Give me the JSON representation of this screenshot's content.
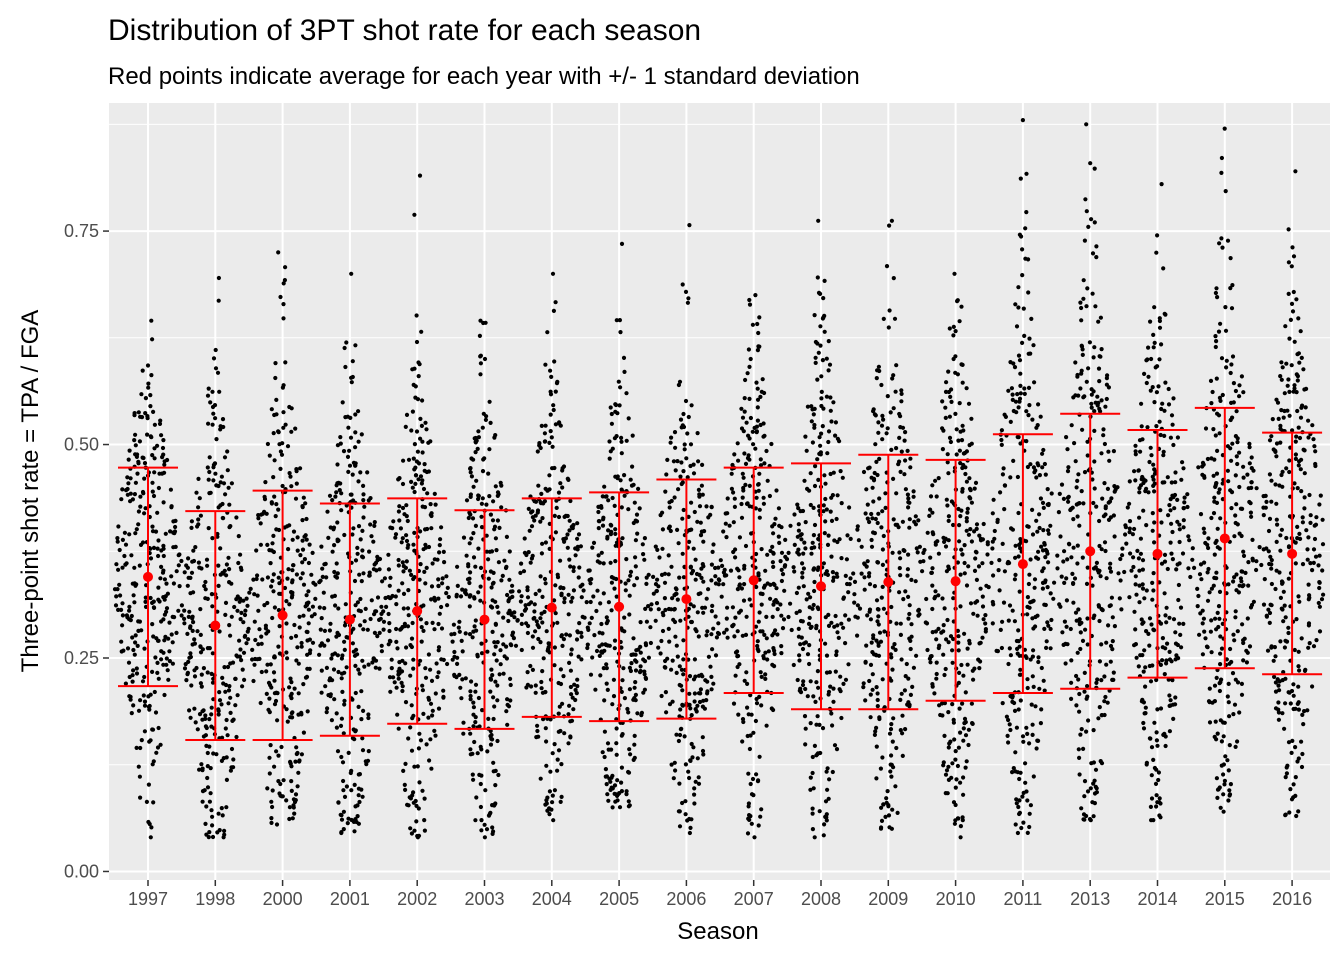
{
  "chart_data": {
    "type": "scatter",
    "subtype": "beeswarm-with-errorbars",
    "title": "Distribution of 3PT shot rate for each season",
    "subtitle": "Red points indicate average for each year with +/- 1 standard deviation",
    "xlabel": "Season",
    "ylabel": "Three-point shot rate = TPA / FGA",
    "ylim": [
      -0.01,
      0.9
    ],
    "yticks": [
      "0.00",
      "0.25",
      "0.50",
      "0.75"
    ],
    "grid": true,
    "legend": "none",
    "colors": {
      "points": "#000000",
      "summary": "#ff0000",
      "panel": "#ebebeb",
      "grid": "#ffffff"
    },
    "categories": [
      "1997",
      "1998",
      "2000",
      "2001",
      "2002",
      "2003",
      "2004",
      "2005",
      "2006",
      "2007",
      "2008",
      "2009",
      "2010",
      "2011",
      "2013",
      "2014",
      "2015",
      "2016"
    ],
    "series": [
      {
        "mean": 0.345,
        "lower": 0.217,
        "upper": 0.473,
        "min": 0.04,
        "max": 0.645
      },
      {
        "mean": 0.288,
        "lower": 0.154,
        "upper": 0.422,
        "min": 0.04,
        "max": 0.695
      },
      {
        "mean": 0.3,
        "lower": 0.154,
        "upper": 0.446,
        "min": 0.055,
        "max": 0.725
      },
      {
        "mean": 0.295,
        "lower": 0.159,
        "upper": 0.431,
        "min": 0.045,
        "max": 0.7
      },
      {
        "mean": 0.305,
        "lower": 0.173,
        "upper": 0.437,
        "min": 0.04,
        "max": 0.815
      },
      {
        "mean": 0.295,
        "lower": 0.167,
        "upper": 0.423,
        "min": 0.04,
        "max": 0.645
      },
      {
        "mean": 0.309,
        "lower": 0.181,
        "upper": 0.437,
        "min": 0.06,
        "max": 0.7
      },
      {
        "mean": 0.31,
        "lower": 0.176,
        "upper": 0.444,
        "min": 0.075,
        "max": 0.735
      },
      {
        "mean": 0.319,
        "lower": 0.179,
        "upper": 0.459,
        "min": 0.045,
        "max": 0.757
      },
      {
        "mean": 0.341,
        "lower": 0.209,
        "upper": 0.473,
        "min": 0.04,
        "max": 0.675
      },
      {
        "mean": 0.334,
        "lower": 0.19,
        "upper": 0.478,
        "min": 0.04,
        "max": 0.762
      },
      {
        "mean": 0.339,
        "lower": 0.19,
        "upper": 0.488,
        "min": 0.05,
        "max": 0.762
      },
      {
        "mean": 0.34,
        "lower": 0.2,
        "upper": 0.482,
        "min": 0.04,
        "max": 0.7
      },
      {
        "mean": 0.36,
        "lower": 0.209,
        "upper": 0.512,
        "min": 0.045,
        "max": 0.88
      },
      {
        "mean": 0.375,
        "lower": 0.214,
        "upper": 0.536,
        "min": 0.06,
        "max": 0.875
      },
      {
        "mean": 0.372,
        "lower": 0.227,
        "upper": 0.517,
        "min": 0.06,
        "max": 0.805
      },
      {
        "mean": 0.39,
        "lower": 0.238,
        "upper": 0.543,
        "min": 0.07,
        "max": 0.87
      },
      {
        "mean": 0.372,
        "lower": 0.231,
        "upper": 0.514,
        "min": 0.065,
        "max": 0.82
      }
    ]
  }
}
